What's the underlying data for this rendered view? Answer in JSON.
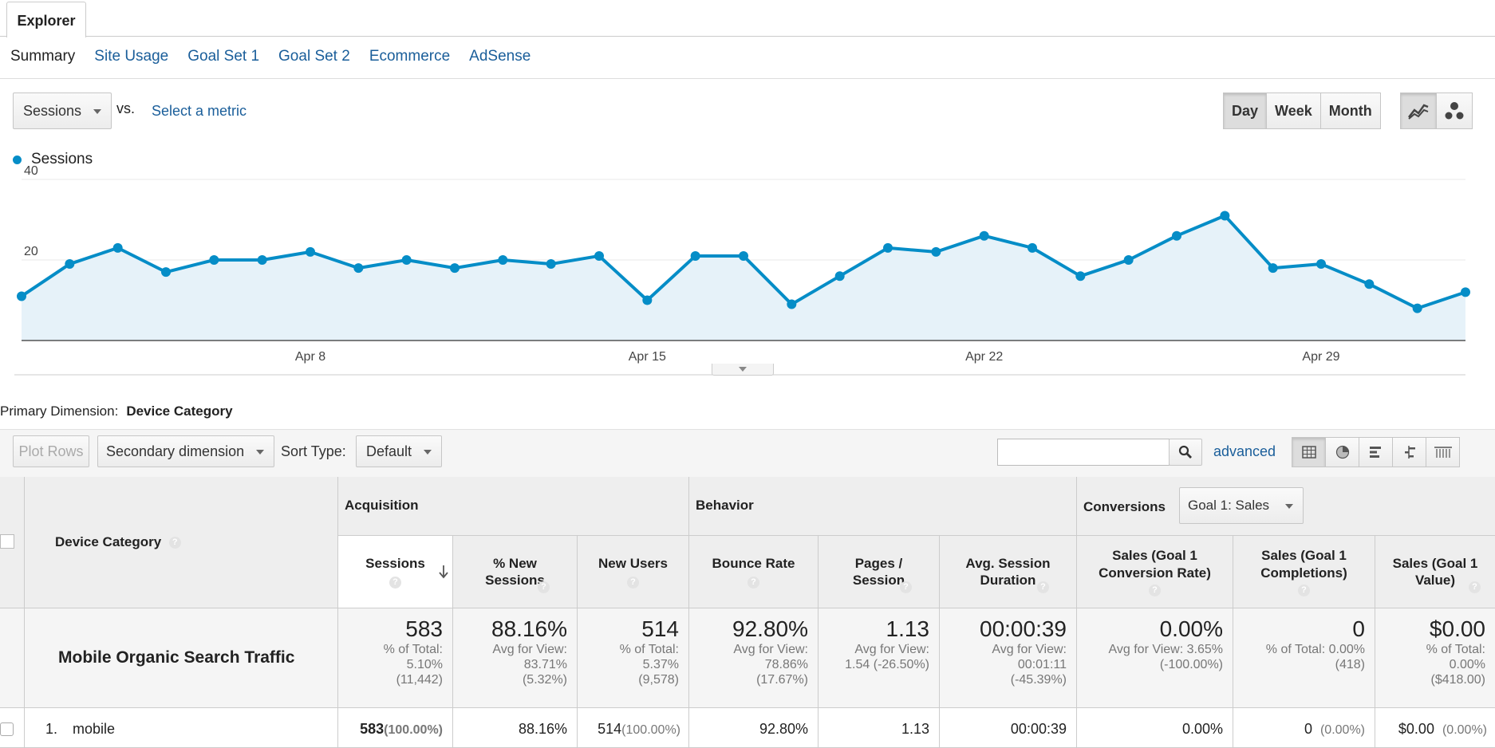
{
  "explorer_tab": "Explorer",
  "subtabs": [
    "Summary",
    "Site Usage",
    "Goal Set 1",
    "Goal Set 2",
    "Ecommerce",
    "AdSense"
  ],
  "metric_select": "Sessions",
  "vs_label": "vs.",
  "select_metric": "Select a metric",
  "period_buttons": [
    "Day",
    "Week",
    "Month"
  ],
  "period_active": "Day",
  "chart_type_icons": [
    "line-chart-icon",
    "motion-chart-icon"
  ],
  "legend_label": "Sessions",
  "colors": {
    "series": "#058dc7",
    "fill": "#e6f2f9",
    "link": "#1a5e9a"
  },
  "chart_data": {
    "type": "area",
    "series": [
      {
        "name": "Sessions",
        "values": [
          11,
          19,
          23,
          17,
          20,
          20,
          22,
          18,
          20,
          18,
          20,
          19,
          21,
          10,
          21,
          21,
          9,
          16,
          23,
          22,
          26,
          23,
          16,
          20,
          26,
          31,
          18,
          19,
          14,
          8,
          12
        ]
      }
    ],
    "x_ticks": [
      "Apr 8",
      "Apr 15",
      "Apr 22",
      "Apr 29"
    ],
    "y_ticks": [
      20,
      40
    ],
    "ylim": [
      0,
      40
    ],
    "grid": true
  },
  "primary_dimension_label": "Primary Dimension:",
  "primary_dimension_value": "Device Category",
  "toolbar": {
    "plot_rows": "Plot Rows",
    "secondary_dimension": "Secondary dimension",
    "sort_type_label": "Sort Type:",
    "sort_type_value": "Default",
    "search_placeholder": "",
    "advanced": "advanced"
  },
  "view_icons": [
    "table-view-icon",
    "pie-view-icon",
    "bar-view-icon",
    "comparison-view-icon",
    "pivot-view-icon"
  ],
  "table": {
    "dimension_header": "Device Category",
    "groups": {
      "acquisition": "Acquisition",
      "behavior": "Behavior",
      "conversions": "Conversions",
      "goal_select": "Goal 1: Sales"
    },
    "columns": {
      "sessions": "Sessions",
      "new_sessions": "% New Sessions",
      "new_users": "New Users",
      "bounce_rate": "Bounce Rate",
      "pages_session": "Pages / Session",
      "avg_duration": "Avg. Session Duration",
      "conv_rate": "Sales (Goal 1 Conversion Rate)",
      "completions": "Sales (Goal 1 Completions)",
      "value": "Sales (Goal 1 Value)"
    },
    "totals": {
      "label": "Mobile Organic Search Traffic",
      "sessions": {
        "value": "583",
        "l1": "% of Total:",
        "l2": "5.10%",
        "l3": "(11,442)"
      },
      "new_sessions": {
        "value": "88.16%",
        "l1": "Avg for View:",
        "l2": "83.71%",
        "l3": "(5.32%)"
      },
      "new_users": {
        "value": "514",
        "l1": "% of Total:",
        "l2": "5.37%",
        "l3": "(9,578)"
      },
      "bounce_rate": {
        "value": "92.80%",
        "l1": "Avg for View:",
        "l2": "78.86%",
        "l3": "(17.67%)"
      },
      "pages_session": {
        "value": "1.13",
        "l1": "Avg for View:",
        "l2": "1.54 (-26.50%)",
        "l3": ""
      },
      "avg_duration": {
        "value": "00:00:39",
        "l1": "Avg for View:",
        "l2": "00:01:11",
        "l3": "(-45.39%)"
      },
      "conv_rate": {
        "value": "0.00%",
        "l1": "Avg for View: 3.65%",
        "l2": "(-100.00%)",
        "l3": ""
      },
      "completions": {
        "value": "0",
        "l1": "% of Total: 0.00%",
        "l2": "(418)",
        "l3": ""
      },
      "value": {
        "value": "$0.00",
        "l1": "% of Total:",
        "l2": "0.00%",
        "l3": "($418.00)"
      }
    },
    "rows": [
      {
        "index": "1.",
        "name": "mobile",
        "sessions": "583",
        "sessions_pct": "(100.00%)",
        "new_sessions": "88.16%",
        "new_users": "514",
        "new_users_pct": "(100.00%)",
        "bounce_rate": "92.80%",
        "pages_session": "1.13",
        "avg_duration": "00:00:39",
        "conv_rate": "0.00%",
        "completions": "0",
        "completions_pct": "(0.00%)",
        "value": "$0.00",
        "value_pct": "(0.00%)"
      }
    ]
  }
}
